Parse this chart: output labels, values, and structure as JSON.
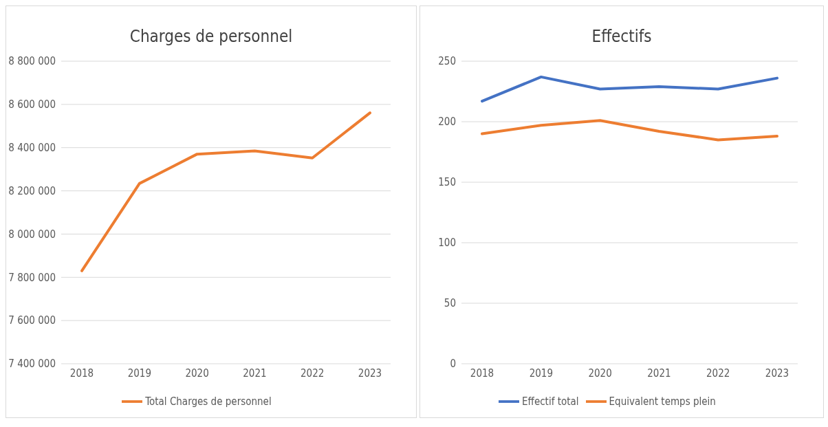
{
  "chart_data": [
    {
      "type": "line",
      "title": "Charges de personnel",
      "categories": [
        "2018",
        "2019",
        "2020",
        "2021",
        "2022",
        "2023"
      ],
      "series": [
        {
          "name": "Total Charges de personnel",
          "color": "#ed7d31",
          "values": [
            7830000,
            8234000,
            8370000,
            8385000,
            8352000,
            8561000
          ]
        }
      ],
      "ylim": [
        7400000,
        8800000
      ],
      "yticks": [
        {
          "value": 7400000,
          "label": "7 400 000"
        },
        {
          "value": 7600000,
          "label": "7 600 000"
        },
        {
          "value": 7800000,
          "label": "7 800 000"
        },
        {
          "value": 8000000,
          "label": "8 000 000"
        },
        {
          "value": 8200000,
          "label": "8 200 000"
        },
        {
          "value": 8400000,
          "label": "8 400 000"
        },
        {
          "value": 8600000,
          "label": "8 600 000"
        },
        {
          "value": 8800000,
          "label": "8 800 000"
        }
      ],
      "grid": "y",
      "legend": "bottom",
      "marker": "none",
      "line_style": "solid"
    },
    {
      "type": "line",
      "title": "Effectifs",
      "categories": [
        "2018",
        "2019",
        "2020",
        "2021",
        "2022",
        "2023"
      ],
      "series": [
        {
          "name": "Effectif total",
          "color": "#4472c4",
          "values": [
            217,
            237,
            227,
            229,
            227,
            236
          ]
        },
        {
          "name": "Equivalent temps plein",
          "color": "#ed7d31",
          "values": [
            190,
            197,
            201,
            192,
            185,
            188
          ]
        }
      ],
      "ylim": [
        0,
        250
      ],
      "yticks": [
        0,
        50,
        100,
        150,
        200,
        250
      ],
      "grid": "y",
      "legend": "bottom",
      "marker": "none",
      "line_style": "solid"
    }
  ]
}
